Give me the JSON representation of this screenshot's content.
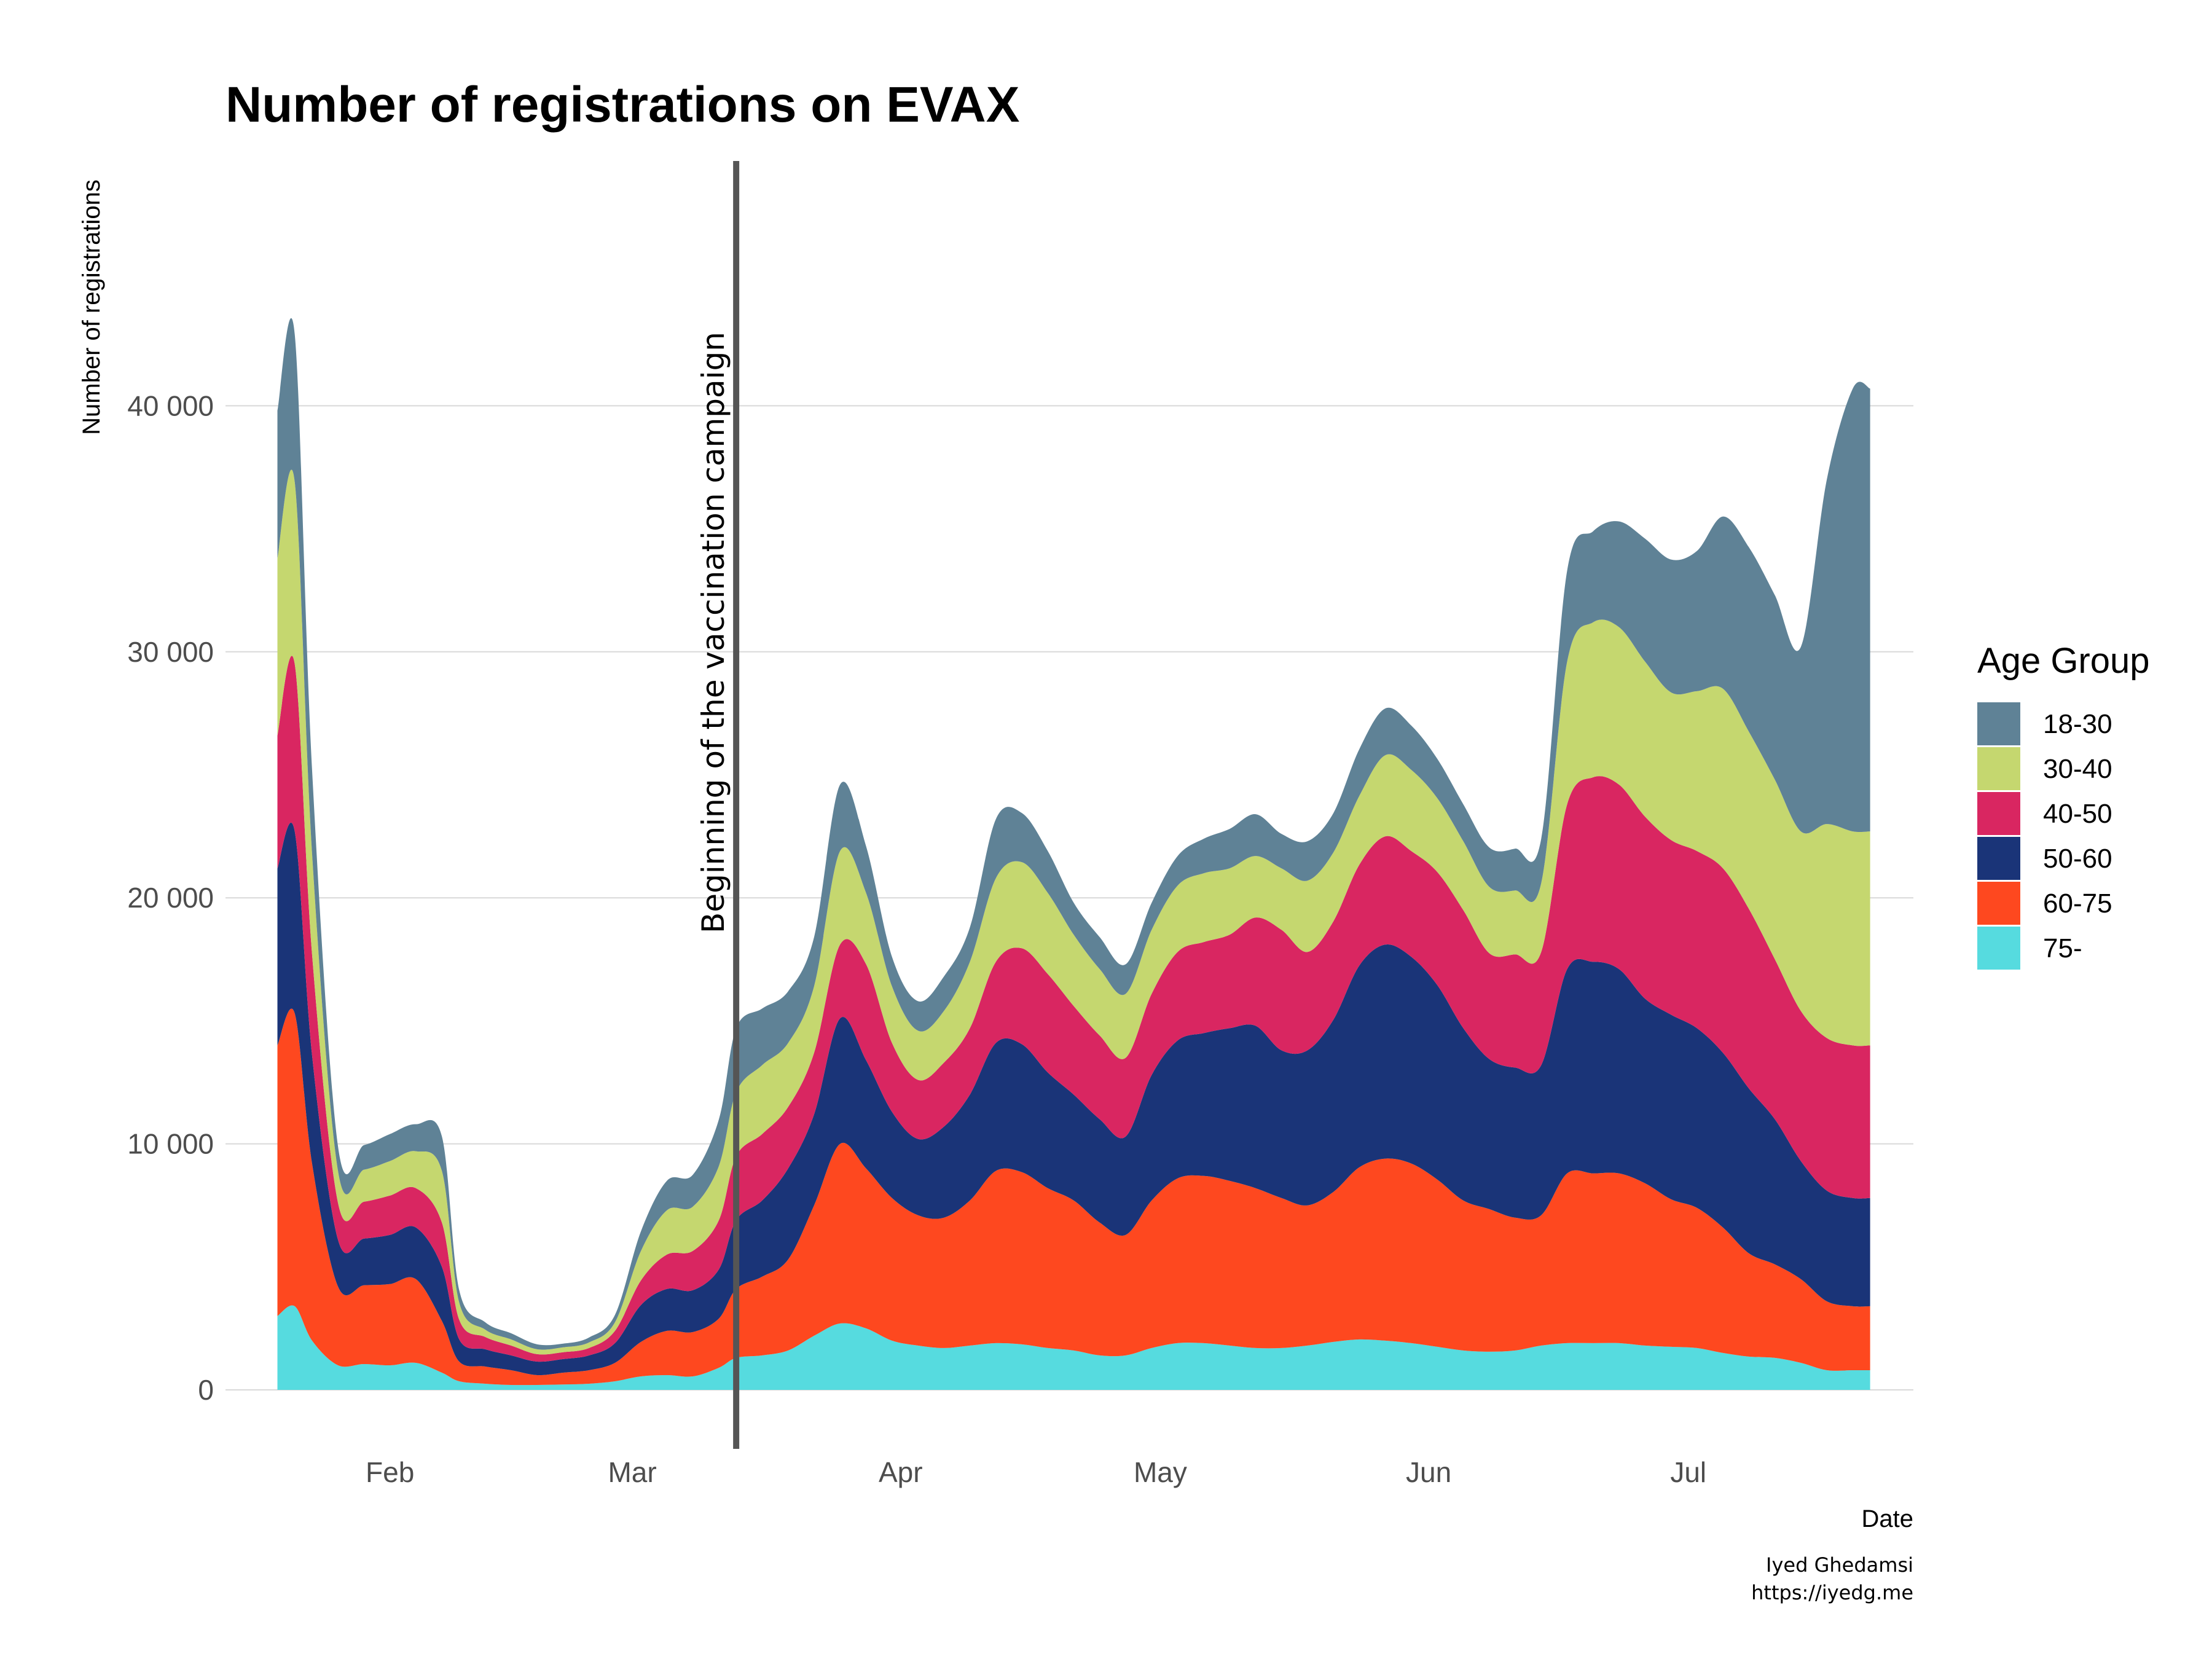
{
  "chart_data": {
    "type": "area",
    "stacked": true,
    "title": "Number of registrations on EVAX",
    "xlabel": "Date",
    "ylabel": "Number of registrations",
    "ylim": [
      0,
      50000
    ],
    "yticks": [
      0,
      10000,
      20000,
      30000,
      40000
    ],
    "ytick_labels": [
      "0",
      "10 000",
      "20 000",
      "30 000",
      "40 000"
    ],
    "xlim": [
      "2021-01-13",
      "2021-07-27"
    ],
    "xticks": [
      "2021-02-01",
      "2021-03-01",
      "2021-04-01",
      "2021-05-01",
      "2021-06-01",
      "2021-07-01"
    ],
    "xtick_labels": [
      "Feb",
      "Mar",
      "Apr",
      "May",
      "Jun",
      "Jul"
    ],
    "grid": true,
    "legend": {
      "title": "Age Group",
      "position": "right"
    },
    "annotation": {
      "x": "2021-03-13",
      "text": "Beginning of the vaccination campaign"
    },
    "caption": [
      "Iyed Ghedamsi",
      "https://iyedg.me"
    ],
    "x": [
      "2021-01-19",
      "2021-01-21",
      "2021-01-23",
      "2021-01-26",
      "2021-01-29",
      "2021-02-01",
      "2021-02-04",
      "2021-02-07",
      "2021-02-09",
      "2021-02-12",
      "2021-02-15",
      "2021-02-18",
      "2021-02-21",
      "2021-02-24",
      "2021-02-27",
      "2021-03-02",
      "2021-03-05",
      "2021-03-08",
      "2021-03-11",
      "2021-03-13",
      "2021-03-16",
      "2021-03-19",
      "2021-03-22",
      "2021-03-25",
      "2021-03-28",
      "2021-03-31",
      "2021-04-03",
      "2021-04-06",
      "2021-04-09",
      "2021-04-12",
      "2021-04-15",
      "2021-04-18",
      "2021-04-21",
      "2021-04-24",
      "2021-04-27",
      "2021-04-30",
      "2021-05-03",
      "2021-05-06",
      "2021-05-09",
      "2021-05-12",
      "2021-05-15",
      "2021-05-18",
      "2021-05-21",
      "2021-05-24",
      "2021-05-27",
      "2021-05-30",
      "2021-06-02",
      "2021-06-05",
      "2021-06-08",
      "2021-06-11",
      "2021-06-14",
      "2021-06-17",
      "2021-06-20",
      "2021-06-23",
      "2021-06-26",
      "2021-06-29",
      "2021-07-02",
      "2021-07-05",
      "2021-07-08",
      "2021-07-11",
      "2021-07-14",
      "2021-07-17",
      "2021-07-20",
      "2021-07-22"
    ],
    "series": [
      {
        "name": "75-",
        "color": "#56dbdf",
        "values": [
          3000,
          3400,
          2000,
          1000,
          1050,
          1000,
          1100,
          700,
          350,
          250,
          200,
          200,
          220,
          250,
          350,
          550,
          600,
          550,
          900,
          1300,
          1400,
          1600,
          2200,
          2700,
          2500,
          2000,
          1800,
          1700,
          1800,
          1900,
          1850,
          1700,
          1600,
          1400,
          1400,
          1700,
          1900,
          1900,
          1800,
          1700,
          1700,
          1800,
          1950,
          2050,
          2000,
          1900,
          1750,
          1600,
          1550,
          1600,
          1800,
          1900,
          1900,
          1900,
          1800,
          1750,
          1700,
          1500,
          1350,
          1300,
          1100,
          800,
          800,
          800
        ]
      },
      {
        "name": "60-75",
        "color": "#fe481f",
        "values": [
          11000,
          11900,
          7200,
          3200,
          3200,
          3300,
          3400,
          2100,
          800,
          700,
          600,
          400,
          480,
          550,
          750,
          1400,
          1800,
          1800,
          2000,
          2800,
          3200,
          3700,
          5300,
          7300,
          6500,
          5800,
          5300,
          5300,
          5900,
          7000,
          7000,
          6500,
          6100,
          5400,
          4900,
          6000,
          6700,
          6800,
          6700,
          6500,
          6100,
          5700,
          6100,
          7000,
          7400,
          7300,
          6800,
          6100,
          5800,
          5400,
          5300,
          6900,
          6900,
          6900,
          6600,
          6000,
          5700,
          5100,
          4200,
          3800,
          3400,
          2800,
          2600,
          2600
        ]
      },
      {
        "name": "50-60",
        "color": "#1a3478",
        "values": [
          7200,
          7400,
          4400,
          1900,
          1900,
          2000,
          2100,
          2200,
          900,
          700,
          600,
          550,
          550,
          600,
          800,
          1500,
          1700,
          1700,
          2000,
          2800,
          3100,
          3700,
          3700,
          5100,
          4400,
          3500,
          3100,
          3700,
          4300,
          5200,
          5200,
          4700,
          4300,
          4200,
          4000,
          5100,
          5600,
          5800,
          6200,
          6600,
          6000,
          6300,
          7000,
          8200,
          8700,
          8400,
          7900,
          7000,
          6100,
          6100,
          6100,
          8300,
          8600,
          8300,
          7500,
          7500,
          7300,
          7100,
          6700,
          5900,
          4800,
          4500,
          4400,
          4400
        ]
      },
      {
        "name": "40-50",
        "color": "#d92661",
        "values": [
          5400,
          6800,
          4100,
          1500,
          1500,
          1600,
          1600,
          1800,
          800,
          500,
          400,
          300,
          280,
          300,
          500,
          1000,
          1400,
          1600,
          2000,
          2600,
          2700,
          2500,
          2500,
          3000,
          3900,
          2800,
          2400,
          2600,
          2700,
          3300,
          3900,
          4000,
          3600,
          3400,
          3200,
          3300,
          3600,
          3700,
          3800,
          4400,
          4900,
          4000,
          4000,
          4100,
          4400,
          4300,
          4600,
          4800,
          4300,
          4600,
          4600,
          6700,
          7500,
          7500,
          7400,
          7100,
          7200,
          7500,
          7300,
          6500,
          6100,
          6200,
          6200,
          6200
        ]
      },
      {
        "name": "30-40",
        "color": "#c5d76f",
        "values": [
          7200,
          7400,
          4100,
          1300,
          1300,
          1400,
          1500,
          2100,
          700,
          300,
          250,
          200,
          200,
          230,
          350,
          1200,
          1800,
          1800,
          2200,
          2600,
          2800,
          2600,
          2700,
          3800,
          2900,
          2300,
          2000,
          2100,
          2700,
          3400,
          3500,
          3300,
          2900,
          2700,
          2600,
          2600,
          2700,
          2800,
          2700,
          2500,
          2500,
          2900,
          2800,
          2800,
          3300,
          3300,
          3000,
          2800,
          2700,
          2600,
          2800,
          5800,
          6300,
          6400,
          6300,
          6000,
          6500,
          7300,
          7200,
          7300,
          7300,
          8700,
          8700,
          8700
        ]
      },
      {
        "name": "18-30",
        "color": "#5f8296",
        "values": [
          6000,
          6000,
          3400,
          1000,
          1000,
          1100,
          1100,
          1400,
          500,
          300,
          250,
          200,
          150,
          200,
          300,
          800,
          1200,
          1300,
          1900,
          2600,
          2300,
          2100,
          2000,
          2700,
          1900,
          1200,
          1200,
          1400,
          1400,
          2400,
          2000,
          1700,
          1300,
          1300,
          1200,
          1100,
          1200,
          1400,
          1600,
          1700,
          1400,
          1600,
          1600,
          1900,
          1900,
          1800,
          1600,
          1500,
          1600,
          1700,
          1800,
          3700,
          3700,
          4300,
          5000,
          5400,
          5700,
          7000,
          7500,
          7500,
          7500,
          14000,
          18000,
          18000
        ]
      }
    ]
  }
}
